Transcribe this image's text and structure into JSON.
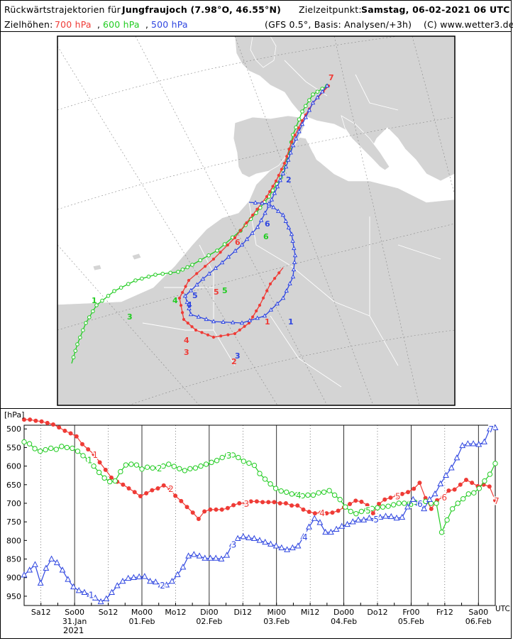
{
  "header": {
    "title_prefix": "Rückwärtstrajektorien für",
    "station": "Jungfraujoch (7.98°O, 46.55°N)",
    "target_label": "Zielzeitpunkt:",
    "target_time": "Samstag, 06-02-2021  06 UTC",
    "heights_label": "Zielhöhen:",
    "h700": "700 hPa",
    "h600": "600 hPa",
    "h500": "500 hPa",
    "sep": ",",
    "model": "(GFS 0.5°, Basis: Analysen/+3h)",
    "copyright": "(C) www.wetter3.de"
  },
  "colors": {
    "700": "#ef3b36",
    "600": "#22cc22",
    "500": "#2f46e0",
    "land": "#d4d4d4",
    "sea": "#ffffff"
  },
  "map": {
    "day_markers": [
      "1",
      "2",
      "3",
      "4",
      "5",
      "6",
      "7"
    ]
  },
  "chart_data": {
    "type": "line",
    "ylabel": "[hPa]",
    "xunit": "UTC",
    "ylim": [
      975,
      490
    ],
    "yticks": [
      500,
      550,
      600,
      650,
      700,
      750,
      800,
      850,
      900,
      950
    ],
    "xlim_hours": [
      0,
      168
    ],
    "x_step_hours": 3,
    "xtick_labels": [
      {
        "h": 6,
        "top": "Sa12",
        "bottom": ""
      },
      {
        "h": 18,
        "top": "So00",
        "bottom": "31.Jan"
      },
      {
        "h": 30,
        "top": "So12",
        "bottom": ""
      },
      {
        "h": 42,
        "top": "Mo00",
        "bottom": "01.Feb"
      },
      {
        "h": 54,
        "top": "Mo12",
        "bottom": ""
      },
      {
        "h": 66,
        "top": "Di00",
        "bottom": "02.Feb"
      },
      {
        "h": 78,
        "top": "Di12",
        "bottom": ""
      },
      {
        "h": 90,
        "top": "Mi00",
        "bottom": "03.Feb"
      },
      {
        "h": 102,
        "top": "Mi12",
        "bottom": ""
      },
      {
        "h": 114,
        "top": "Do00",
        "bottom": "04.Feb"
      },
      {
        "h": 126,
        "top": "Do12",
        "bottom": ""
      },
      {
        "h": 138,
        "top": "Fr00",
        "bottom": "05.Feb"
      },
      {
        "h": 150,
        "top": "Fr12",
        "bottom": ""
      },
      {
        "h": 162,
        "top": "Sa00",
        "bottom": "06.Feb"
      }
    ],
    "year_label": "2021",
    "series": [
      {
        "name": "700 hPa",
        "color": "#ef3b36",
        "marker": "dot",
        "values": [
          475,
          475,
          478,
          480,
          484,
          488,
          496,
          505,
          512,
          520,
          541,
          555,
          568,
          590,
          610,
          631,
          642,
          650,
          660,
          670,
          681,
          673,
          665,
          660,
          652,
          660,
          680,
          694,
          710,
          725,
          742,
          722,
          717,
          717,
          717,
          713,
          705,
          700,
          700,
          695,
          695,
          697,
          697,
          697,
          700,
          700,
          706,
          706,
          717,
          723,
          727,
          725,
          727,
          725,
          720,
          711,
          702,
          693,
          696,
          705,
          727,
          702,
          690,
          685,
          680,
          675,
          670,
          661,
          645,
          686,
          715,
          692,
          683,
          666,
          663,
          650,
          637,
          645,
          654,
          650,
          655,
          692
        ],
        "labels": [
          {
            "i": 12,
            "t": "1"
          },
          {
            "i": 25,
            "t": "2"
          },
          {
            "i": 38,
            "t": "3"
          },
          {
            "i": 51,
            "t": "4"
          },
          {
            "i": 64,
            "t": "5"
          },
          {
            "i": 72,
            "t": "6"
          },
          {
            "i": 83,
            "t": "7"
          }
        ]
      },
      {
        "name": "600 hPa",
        "color": "#22cc22",
        "marker": "circle",
        "values": [
          535,
          540,
          553,
          560,
          556,
          552,
          555,
          547,
          550,
          552,
          560,
          572,
          583,
          600,
          617,
          632,
          642,
          640,
          615,
          597,
          595,
          597,
          608,
          603,
          605,
          605,
          600,
          595,
          601,
          607,
          612,
          607,
          605,
          600,
          595,
          590,
          585,
          577,
          570,
          570,
          577,
          587,
          592,
          598,
          620,
          635,
          648,
          660,
          667,
          670,
          675,
          677,
          680,
          678,
          678,
          672,
          670,
          666,
          678,
          690,
          710,
          722,
          728,
          722,
          718,
          714,
          712,
          710,
          708,
          704,
          700,
          700,
          700,
          697,
          697,
          695,
          700,
          700,
          778,
          745,
          715,
          700,
          688,
          675,
          672,
          660,
          640,
          622,
          593
        ],
        "labels": [
          {
            "i": 12,
            "t": "1"
          },
          {
            "i": 25,
            "t": "2"
          },
          {
            "i": 38,
            "t": "3"
          },
          {
            "i": 51,
            "t": "4"
          },
          {
            "i": 64,
            "t": "5"
          },
          {
            "i": 72,
            "t": "6"
          }
        ]
      },
      {
        "name": "500 hPa",
        "color": "#2f46e0",
        "marker": "triangle",
        "values": [
          893,
          880,
          865,
          915,
          875,
          850,
          860,
          880,
          905,
          925,
          935,
          940,
          945,
          955,
          965,
          957,
          940,
          922,
          910,
          902,
          900,
          898,
          897,
          910,
          912,
          920,
          920,
          910,
          892,
          872,
          842,
          838,
          842,
          848,
          848,
          848,
          850,
          840,
          810,
          795,
          790,
          793,
          795,
          800,
          805,
          810,
          815,
          820,
          825,
          820,
          815,
          790,
          764,
          741,
          752,
          778,
          778,
          770,
          762,
          757,
          750,
          745,
          745,
          740,
          742,
          738,
          735,
          736,
          740,
          738,
          710,
          690,
          700,
          715,
          690,
          675,
          648,
          625,
          605,
          578,
          545,
          540,
          540,
          542,
          535,
          500,
          497
        ],
        "labels": [
          {
            "i": 12,
            "t": "1"
          },
          {
            "i": 25,
            "t": "2"
          },
          {
            "i": 38,
            "t": "3"
          },
          {
            "i": 51,
            "t": "4"
          },
          {
            "i": 64,
            "t": "5"
          },
          {
            "i": 72,
            "t": "6"
          },
          {
            "i": 85,
            "t": "7"
          }
        ]
      }
    ]
  }
}
